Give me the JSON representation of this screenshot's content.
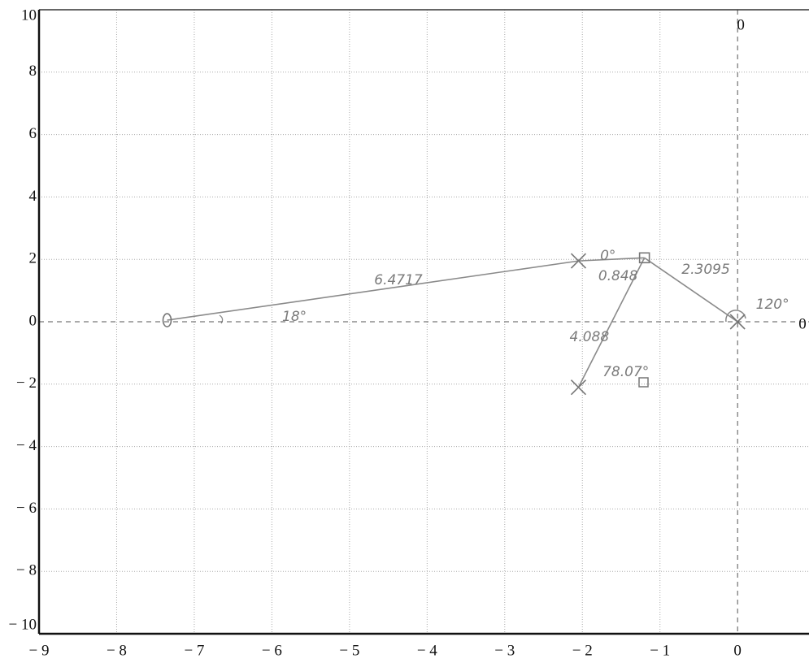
{
  "chart_data": {
    "type": "line",
    "xlim": [
      -9,
      0.92
    ],
    "ylim": [
      -10,
      10
    ],
    "xticks": [
      {
        "value": -9,
        "label": "− 9"
      },
      {
        "value": -8,
        "label": "− 8"
      },
      {
        "value": -7,
        "label": "− 7"
      },
      {
        "value": -6,
        "label": "− 6"
      },
      {
        "value": -5,
        "label": "− 5"
      },
      {
        "value": -4,
        "label": "− 4"
      },
      {
        "value": -3,
        "label": "− 3"
      },
      {
        "value": -2,
        "label": "− 2"
      },
      {
        "value": -1,
        "label": "− 1"
      },
      0
    ],
    "yticks": [
      {
        "value": -10,
        "label": "− 10"
      },
      {
        "value": -8,
        "label": "− 8"
      },
      {
        "value": -6,
        "label": "− 6"
      },
      {
        "value": -4,
        "label": "− 4"
      },
      {
        "value": -2,
        "label": "− 2"
      },
      0,
      2,
      4,
      6,
      8,
      10
    ],
    "x_axis_label": "0",
    "y_axis_label": "0",
    "grid": true,
    "color": "#8a8a8a",
    "segments": [
      {
        "x": [
          -7.35,
          -2.05
        ],
        "y": [
          0.05,
          1.95
        ]
      },
      {
        "x": [
          -2.05,
          -1.2
        ],
        "y": [
          1.95,
          2.05
        ]
      },
      {
        "x": [
          -1.2,
          0
        ],
        "y": [
          2.05,
          0
        ]
      },
      {
        "x": [
          -1.2,
          -2.05
        ],
        "y": [
          2.05,
          -2.1
        ]
      }
    ],
    "points": [
      {
        "x": -7.35,
        "y": 0.05,
        "marker": "circle"
      },
      {
        "x": -2.05,
        "y": 1.95,
        "marker": "cross"
      },
      {
        "x": -1.2,
        "y": 2.05,
        "marker": "square"
      },
      {
        "x": 0,
        "y": 0,
        "marker": "cross"
      },
      {
        "x": -2.05,
        "y": -2.1,
        "marker": "cross"
      }
    ],
    "annotations": [
      {
        "text": "6.4717",
        "x": -4.37,
        "y": 1.33
      },
      {
        "text": "18°",
        "x": -5.71,
        "y": 0.16
      },
      {
        "text": "0°",
        "x": -1.67,
        "y": 2.11
      },
      {
        "text": "0.848",
        "x": -1.54,
        "y": 1.46
      },
      {
        "text": "2.3095",
        "x": -0.41,
        "y": 1.67
      },
      {
        "text": "120°",
        "x": 0.45,
        "y": 0.55
      },
      {
        "text": "4.088",
        "x": -1.91,
        "y": -0.49
      },
      {
        "text": "78.07°",
        "x": -1.44,
        "y": -1.61
      }
    ]
  }
}
